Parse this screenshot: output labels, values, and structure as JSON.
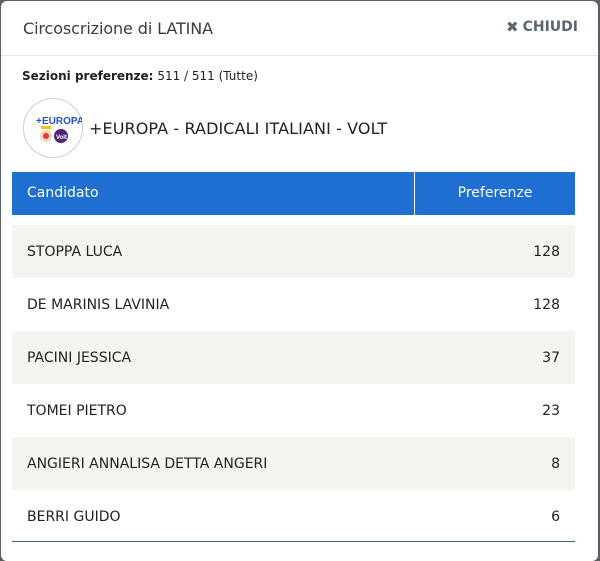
{
  "modal": {
    "title": "Circoscrizione di LATINA",
    "close_label": "CHIUDI"
  },
  "sezioni": {
    "label": "Sezioni preferenze:",
    "value": "511 / 511 (Tutte)"
  },
  "party": {
    "name": "+EUROPA - RADICALI ITALIANI - VOLT",
    "logo_text": "EUROPA",
    "logo_sub": "Volt"
  },
  "table": {
    "headers": {
      "candidate": "Candidato",
      "preferences": "Preferenze"
    },
    "rows": [
      {
        "name": "STOPPA LUCA",
        "value": "128"
      },
      {
        "name": "DE MARINIS LAVINIA",
        "value": "128"
      },
      {
        "name": "PACINI JESSICA",
        "value": "37"
      },
      {
        "name": "TOMEI PIETRO",
        "value": "23"
      },
      {
        "name": "ANGIERI ANNALISA DETTA ANGERI",
        "value": "8"
      },
      {
        "name": "BERRI GUIDO",
        "value": "6"
      }
    ]
  },
  "colors": {
    "header_bg": "#1e6fd1",
    "row_alt": "#f4f4f1",
    "europa_blue": "#1e56c8",
    "volt_purple": "#502379"
  }
}
